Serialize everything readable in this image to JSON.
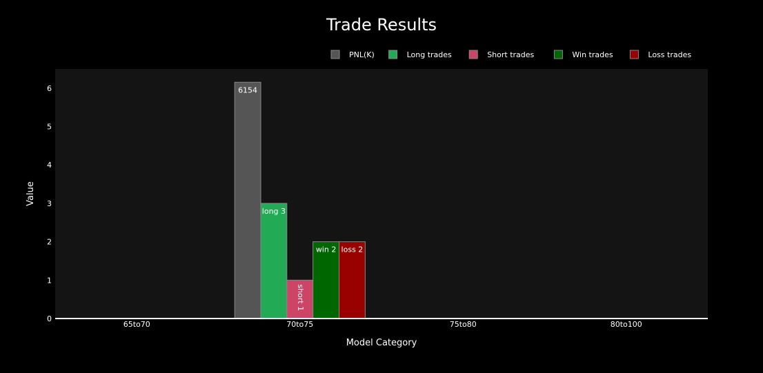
{
  "chart_data": {
    "type": "bar",
    "title": "Trade Results",
    "xlabel": "Model Category",
    "ylabel": "Value",
    "categories": [
      "65to70",
      "70to75",
      "75to80",
      "80to100"
    ],
    "ylim": [
      0,
      6.5
    ],
    "yticks": [
      0,
      1,
      2,
      3,
      4,
      5,
      6
    ],
    "legend_position": "top-right",
    "series": [
      {
        "name": "PNL(K)",
        "color": "#555555",
        "values": [
          0,
          6.154,
          0,
          0
        ],
        "labels": [
          "",
          "6154",
          "",
          ""
        ],
        "label_rotated": false
      },
      {
        "name": "Long trades",
        "color": "#22aa55",
        "values": [
          0,
          3,
          0,
          0
        ],
        "labels": [
          "",
          "long 3",
          "",
          ""
        ],
        "label_rotated": false
      },
      {
        "name": "Short trades",
        "color": "#cc4466",
        "values": [
          0,
          1,
          0,
          0
        ],
        "labels": [
          "",
          "short 1",
          "",
          ""
        ],
        "label_rotated": true
      },
      {
        "name": "Win trades",
        "color": "#006600",
        "values": [
          0,
          2,
          0,
          0
        ],
        "labels": [
          "",
          "win 2",
          "",
          ""
        ],
        "label_rotated": false
      },
      {
        "name": "Loss trades",
        "color": "#990000",
        "values": [
          0,
          2,
          0,
          0
        ],
        "labels": [
          "",
          "loss 2",
          "",
          ""
        ],
        "label_rotated": false
      }
    ]
  },
  "colors": {
    "page_background": "#000000",
    "plot_background": "#141414",
    "text": "#ffffff",
    "bar_outline": "#888888"
  }
}
